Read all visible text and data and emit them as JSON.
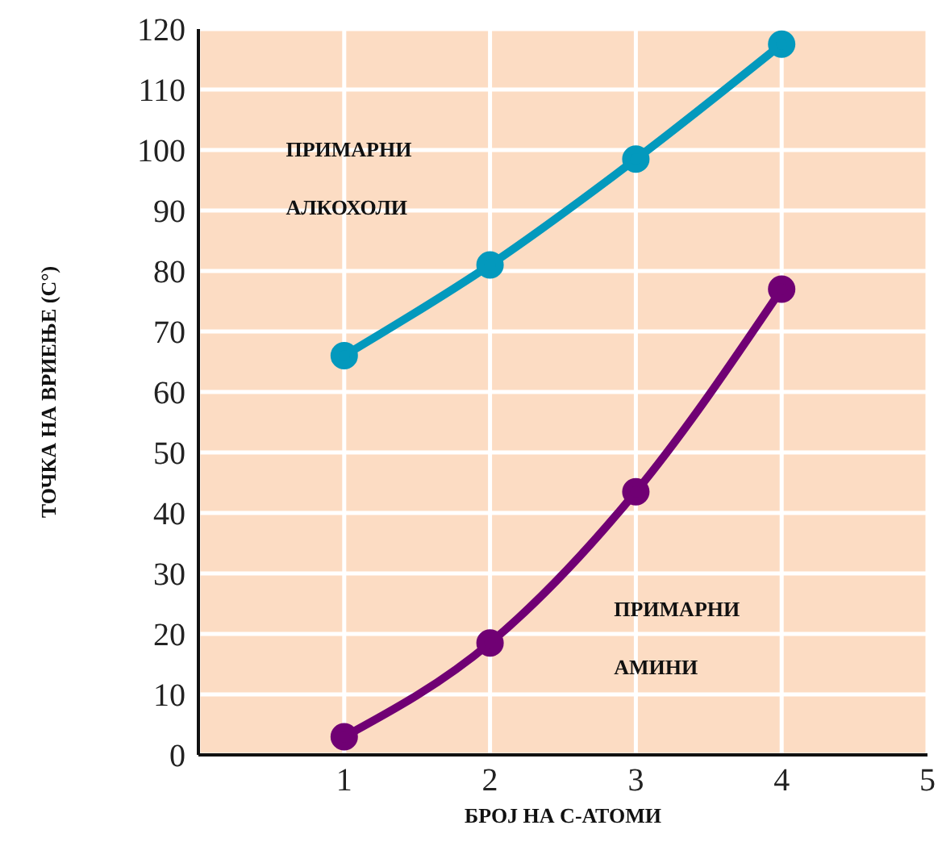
{
  "chart_data": {
    "type": "line",
    "xlabel": "БРОЈ НА С-АТОМИ",
    "ylabel": "ТОЧКА НА ВРИЕЊЕ (C°)",
    "x": [
      1,
      2,
      3,
      4
    ],
    "series": [
      {
        "name": "ПРИМАРНИ АЛКОХОЛИ",
        "color": "#0399bd",
        "values": [
          66,
          81,
          98.5,
          117.5
        ]
      },
      {
        "name": "ПРИМАРНИ АМИНИ",
        "color": "#700074",
        "values": [
          3,
          18.5,
          43.5,
          77
        ]
      }
    ],
    "xlim": [
      0,
      5
    ],
    "xticks": [
      1,
      2,
      3,
      4,
      5
    ],
    "ylim": [
      0,
      120
    ],
    "yticks": [
      0,
      10,
      20,
      30,
      40,
      50,
      60,
      70,
      80,
      90,
      100,
      110,
      120
    ],
    "grid": true,
    "legend": false,
    "marker": "circle",
    "line_style": "solid"
  }
}
